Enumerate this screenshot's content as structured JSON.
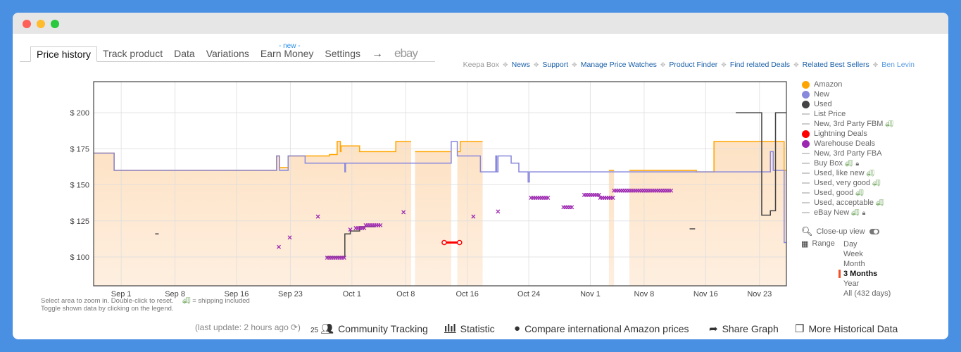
{
  "tabs": [
    {
      "label": "Price history",
      "active": true
    },
    {
      "label": "Track product"
    },
    {
      "label": "Data"
    },
    {
      "label": "Variations"
    },
    {
      "label": "Earn Money",
      "badge": "- new -"
    },
    {
      "label": "Settings"
    },
    {
      "label": "→"
    },
    {
      "label": "ebay"
    }
  ],
  "links": {
    "keepa_box": "Keepa Box",
    "items": [
      "News",
      "Support",
      "Manage Price Watches",
      "Product Finder",
      "Find related Deals",
      "Related Best Sellers"
    ],
    "user": "Ben Levin"
  },
  "legend": [
    {
      "label": "Amazon",
      "type": "dot",
      "color": "#ffa500"
    },
    {
      "label": "New",
      "type": "dot",
      "color": "#8888dd"
    },
    {
      "label": "Used",
      "type": "dot",
      "color": "#444444"
    },
    {
      "label": "List Price",
      "type": "line"
    },
    {
      "label": "New, 3rd Party FBM",
      "type": "line",
      "truck": true
    },
    {
      "label": "Lightning Deals",
      "type": "dot",
      "color": "#ff0000"
    },
    {
      "label": "Warehouse Deals",
      "type": "dot",
      "color": "#9c27b0"
    },
    {
      "label": "New, 3rd Party FBA",
      "type": "line"
    },
    {
      "label": "Buy Box",
      "type": "line",
      "truck": true,
      "lock": true
    },
    {
      "label": "Used, like new",
      "type": "line",
      "truck": true
    },
    {
      "label": "Used, very good",
      "type": "line",
      "truck": true
    },
    {
      "label": "Used, good",
      "type": "line",
      "truck": true
    },
    {
      "label": "Used, acceptable",
      "type": "line",
      "truck": true
    },
    {
      "label": "eBay New",
      "type": "line",
      "truck": true,
      "lock": true
    }
  ],
  "closeup": {
    "label": "Close-up view",
    "enabled": false
  },
  "range": {
    "label": "Range",
    "options": [
      "Day",
      "Week",
      "Month",
      "3 Months",
      "Year",
      "All (432 days)"
    ],
    "selected": "3 Months"
  },
  "help": {
    "line1": "Select area to zoom in. Double-click to reset.",
    "shipping": "= shipping included",
    "line2": "Toggle shown data by clicking on the legend."
  },
  "bottom": {
    "last_update": "(last update: 2 hours ago",
    "community_count": "25",
    "community": "Community Tracking",
    "statistic": "Statistic",
    "compare": "Compare international Amazon prices",
    "share": "Share Graph",
    "more": "More Historical Data"
  },
  "chart_data": {
    "type": "line",
    "x_range": [
      "Aug 28 10:00",
      "Nov 26 12:00"
    ],
    "ylim": [
      80,
      221.5
    ],
    "y_ticks": [
      100,
      125,
      150,
      175,
      200
    ],
    "y_tick_labels": [
      "$ 100",
      "$ 125",
      "$ 150",
      "$ 175",
      "$ 200"
    ],
    "x_ticks": [
      "Sep 1",
      "Sep 8",
      "Sep 16",
      "Sep 23",
      "Oct 1",
      "Oct 8",
      "Oct 16",
      "Oct 24",
      "Nov 1",
      "Nov 8",
      "Nov 16",
      "Nov 23"
    ],
    "grid": true,
    "legend_placement": "right",
    "series": [
      {
        "name": "Amazon",
        "color": "#ffa500",
        "fill": true,
        "step": true,
        "points": [
          [
            "Aug 28 10:00",
            172
          ],
          [
            "Aug 31 02:00",
            160
          ],
          [
            "Sep 21 05:00",
            170
          ],
          [
            "Sep 21 14:00",
            162
          ],
          [
            "Sep 22 17:00",
            170
          ],
          [
            "Sep 28 02:00",
            171
          ],
          [
            "Sep 29 02:00",
            180
          ],
          [
            "Sep 29 12:00",
            173
          ],
          [
            "Sep 29 14:00",
            177
          ],
          [
            "Oct 2 00:00",
            173
          ],
          [
            "Oct 6 17:00",
            180
          ],
          [
            "Oct 8 17:00",
            null
          ],
          [
            "Oct 9 05:00",
            173
          ],
          [
            "Oct 13 22:00",
            null
          ],
          [
            "Oct 14 17:00",
            173
          ],
          [
            "Oct 15 02:00",
            180
          ],
          [
            "Oct 18 00:00",
            null
          ],
          [
            "Nov 3 10:00",
            160
          ],
          [
            "Nov 4 02:00",
            null
          ],
          [
            "Nov 6 02:00",
            160
          ],
          [
            "Nov 14 19:00",
            159
          ],
          [
            "Nov 17 02:00",
            180
          ],
          [
            "Nov 26 05:00",
            160
          ],
          [
            "Nov 26 12:00",
            160
          ]
        ]
      },
      {
        "name": "New",
        "color": "#8888dd",
        "step": true,
        "points": [
          [
            "Aug 28 10:00",
            172
          ],
          [
            "Aug 31 02:00",
            160
          ],
          [
            "Sep 21 05:00",
            170
          ],
          [
            "Sep 21 14:00",
            160
          ],
          [
            "Sep 22 17:00",
            170
          ],
          [
            "Sep 24 22:00",
            165
          ],
          [
            "Sep 30 02:00",
            159
          ],
          [
            "Sep 30 04:00",
            165
          ],
          [
            "Oct 13 22:00",
            180
          ],
          [
            "Oct 14 17:00",
            170
          ],
          [
            "Oct 17 17:00",
            159
          ],
          [
            "Oct 19 17:00",
            170
          ],
          [
            "Oct 19 20:00",
            159
          ],
          [
            "Oct 20 00:00",
            170
          ],
          [
            "Oct 21 17:00",
            165
          ],
          [
            "Oct 22 17:00",
            159
          ],
          [
            "Oct 23 22:00",
            152
          ],
          [
            "Oct 24 02:00",
            159
          ],
          [
            "Nov 24 10:00",
            173
          ],
          [
            "Nov 24 19:00",
            160
          ],
          [
            "Nov 26 05:00",
            110
          ],
          [
            "Nov 26 12:00",
            110
          ]
        ]
      },
      {
        "name": "Used",
        "color": "#444444",
        "step": true,
        "points": [
          [
            "Sep 5 10:00",
            116
          ],
          [
            "Sep 5 20:00",
            116
          ],
          [
            "Sep 5 21:00",
            null
          ],
          [
            "Sep 27 14:00",
            100
          ],
          [
            "Sep 30 02:00",
            116
          ],
          [
            "Sep 30 19:00",
            118
          ],
          [
            "Oct 2 00:00",
            121
          ],
          [
            "Oct 4 00:00",
            121
          ],
          [
            "Oct 4 01:00",
            null
          ],
          [
            "Nov 13 22:00",
            119.5
          ],
          [
            "Nov 14 14:00",
            119.5
          ],
          [
            "Nov 14 15:00",
            null
          ],
          [
            "Nov 19 22:00",
            200
          ],
          [
            "Nov 23 07:00",
            129
          ],
          [
            "Nov 24 10:00",
            132
          ],
          [
            "Nov 25 02:00",
            200
          ],
          [
            "Nov 26 12:00",
            200
          ]
        ]
      },
      {
        "name": "Lightning Deals",
        "color": "#ff0000",
        "points": [
          [
            "Oct 13 00:00",
            110
          ],
          [
            "Oct 15 00:00",
            110
          ]
        ]
      },
      {
        "name": "Warehouse Deals",
        "color": "#9c27b0",
        "markers": true,
        "ranges": [
          [
            "Sep 21 12:00",
            "Sep 21 12:00",
            107
          ],
          [
            "Sep 22 22:00",
            "Sep 22 22:00",
            113.5
          ],
          [
            "Sep 26 14:00",
            "Sep 26 14:00",
            128
          ],
          [
            "Sep 27 19:00",
            "Sep 30 02:00",
            99.5
          ],
          [
            "Sep 30 19:00",
            "Sep 30 19:00",
            119
          ],
          [
            "Oct 1 12:00",
            "Oct 2 19:00",
            120
          ],
          [
            "Oct 2 19:00",
            "Oct 4 17:00",
            122
          ],
          [
            "Oct 7 17:00",
            "Oct 7 17:00",
            131
          ],
          [
            "Oct 16 19:00",
            "Oct 16 19:00",
            128
          ],
          [
            "Oct 20 00:00",
            "Oct 20 00:00",
            131.5
          ],
          [
            "Oct 24 07:00",
            "Oct 26 14:00",
            141
          ],
          [
            "Oct 28 12:00",
            "Oct 29 19:00",
            134.5
          ],
          [
            "Oct 31 05:00",
            "Nov 2 07:00",
            143
          ],
          [
            "Nov 2 07:00",
            "Nov 4 02:00",
            141
          ],
          [
            "Nov 4 02:00",
            "Nov 11 14:00",
            146
          ]
        ]
      }
    ]
  }
}
